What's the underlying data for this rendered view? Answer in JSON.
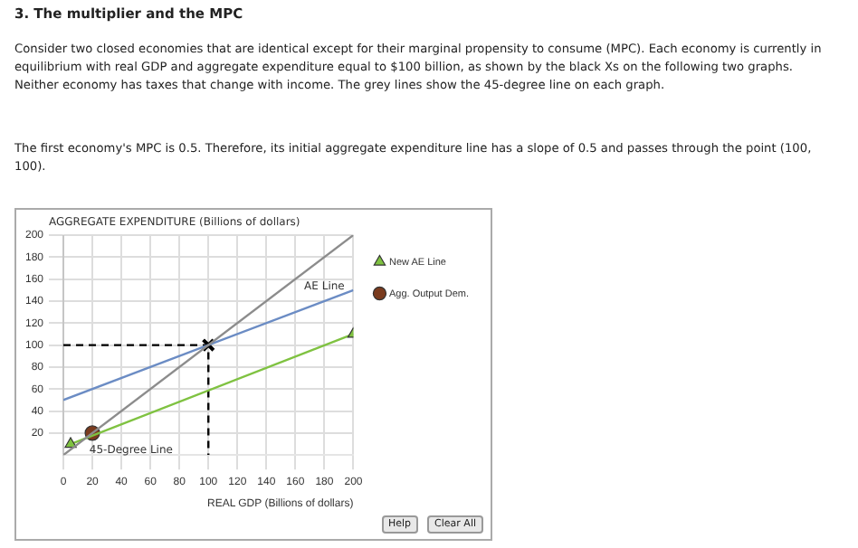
{
  "chart_data": {
    "type": "line",
    "title": "3. The multiplier and the MPC",
    "subtitle": "Consider two closed economies that are identical except for their marginal propensity to consume (MPC). Each economy is currently in equilibrium with real GDP and aggregate expenditure equal to $100 billion, as shown by the black Xs on the following two graphs. Neither economy has taxes that change with income. The grey lines show the 45-degree line on each graph.",
    "ylabel": "AGGREGATE EXPENDITURE (Billions of dollars)",
    "xlabel": "REAL GDP (Billions of dollars)",
    "xlim": [
      0,
      200
    ],
    "xticks": [
      0,
      20,
      40,
      60,
      80,
      100,
      120,
      140,
      160,
      180,
      200
    ],
    "ylim": [
      0,
      200
    ],
    "yticks": [
      20,
      40,
      60,
      80,
      100,
      120,
      140,
      160,
      180,
      200
    ],
    "grid": true,
    "legend": "right",
    "series": [
      {
        "name": "45-Degree Line",
        "color": "#8c8c8c",
        "x": [
          0,
          200
        ],
        "values": [
          0,
          200
        ],
        "marker": "none"
      },
      {
        "name": "AE Line",
        "color": "#6b8cc4",
        "x": [
          0,
          200
        ],
        "values": [
          50,
          150
        ],
        "marker": "none"
      },
      {
        "name": "New AE Line",
        "color": "#7fc241",
        "x": [
          5,
          200
        ],
        "values": [
          10,
          110
        ],
        "marker": "triangle"
      },
      {
        "color": "#000000",
        "x": [
          0,
          100,
          100
        ],
        "values": [
          100,
          100,
          0
        ],
        "marker": "none",
        "line_style": "dashed"
      },
      {
        "type": "scatter",
        "color": "#000000",
        "x": [
          100
        ],
        "values": [
          100
        ],
        "marker": "cross"
      },
      {
        "type": "scatter",
        "name": "Agg. Output Dem.",
        "color": "#7a3b1e",
        "x": [
          20
        ],
        "values": [
          20
        ],
        "marker": "circle"
      }
    ],
    "annotations": [
      "The first economy's MPC is 0.5. Therefore, its initial aggregate expenditure line has a slope of 0.5 and passes through the point (100, 100).",
      "Help",
      "Clear All"
    ]
  }
}
